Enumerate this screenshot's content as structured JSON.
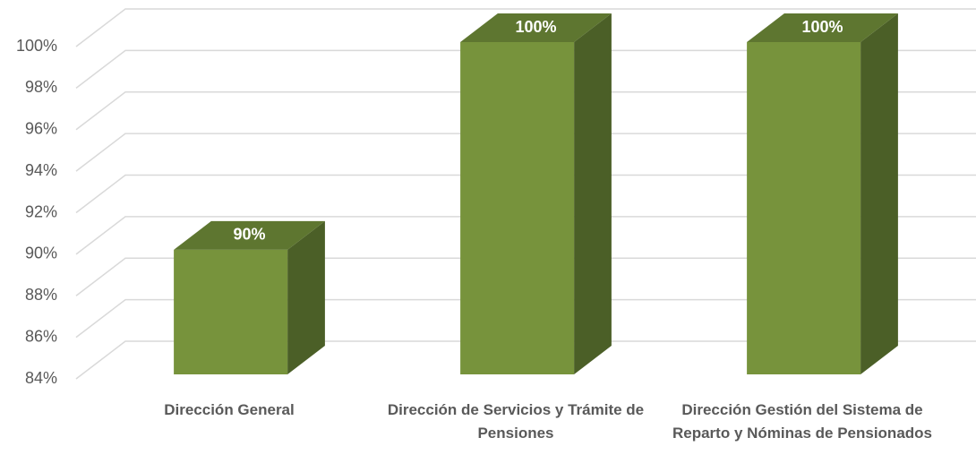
{
  "chart_data": {
    "type": "bar3d",
    "categories": [
      "Dirección General",
      "Dirección de Servicios y Trámite de Pensiones",
      "Dirección Gestión del Sistema de Reparto y Nóminas de Pensionados"
    ],
    "values": [
      90,
      100,
      100
    ],
    "value_labels": [
      "90%",
      "100%",
      "100%"
    ],
    "color": "#77933c",
    "ylim": [
      84,
      100
    ],
    "yticks": [
      {
        "value": 84,
        "label": "84%"
      },
      {
        "value": 86,
        "label": "86%"
      },
      {
        "value": 88,
        "label": "88%"
      },
      {
        "value": 90,
        "label": "90%"
      },
      {
        "value": 92,
        "label": "92%"
      },
      {
        "value": 94,
        "label": "94%"
      },
      {
        "value": 96,
        "label": "96%"
      },
      {
        "value": 98,
        "label": "98%"
      },
      {
        "value": 100,
        "label": "100%"
      }
    ],
    "grid": true
  }
}
